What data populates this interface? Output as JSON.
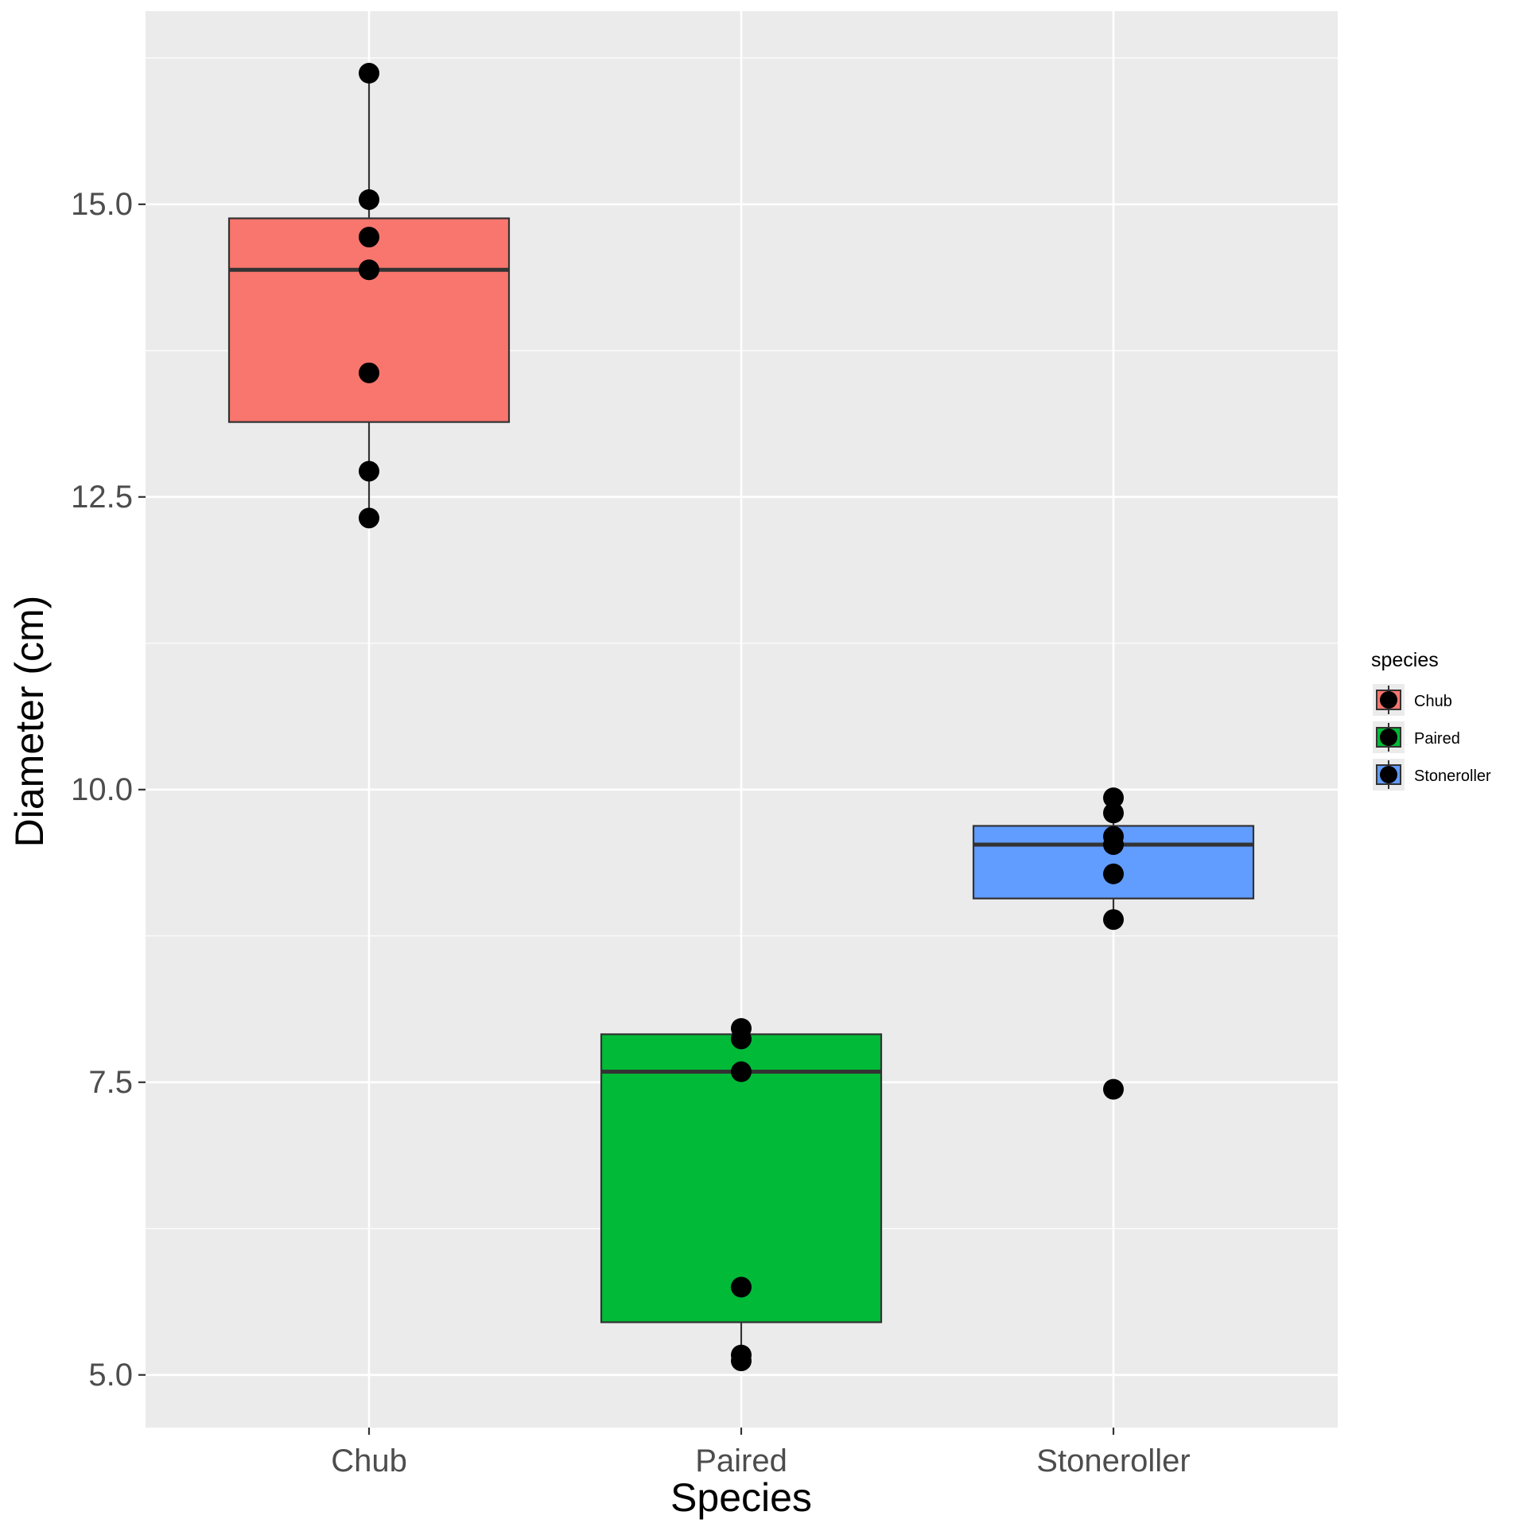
{
  "chart_data": {
    "type": "boxplot",
    "xlabel": "Species",
    "ylabel": "Diameter (cm)",
    "categories": [
      "Chub",
      "Paired",
      "Stoneroller"
    ],
    "ylim": [
      4.55,
      16.65
    ],
    "yticks": [
      5.0,
      7.5,
      10.0,
      12.5,
      15.0
    ],
    "ytick_labels": [
      "5.0",
      "7.5",
      "10.0",
      "12.5",
      "15.0"
    ],
    "grid": true,
    "legend": {
      "title": "species",
      "position": "right",
      "entries": [
        "Chub",
        "Paired",
        "Stoneroller"
      ]
    },
    "colors": {
      "Chub": "#F8766D",
      "Paired": "#00BA38",
      "Stoneroller": "#619CFF",
      "panel_background": "#EBEBEB",
      "grid": "#FFFFFF",
      "point": "#000000",
      "box_outline": "#333333"
    },
    "boxes": [
      {
        "category": "Chub",
        "whisker_low": 12.32,
        "q1": 13.14,
        "median": 14.44,
        "q3": 14.88,
        "whisker_high": 16.12
      },
      {
        "category": "Paired",
        "whisker_low": 5.12,
        "q1": 5.45,
        "median": 7.59,
        "q3": 7.91,
        "whisker_high": 7.96
      },
      {
        "category": "Stoneroller",
        "whisker_low": 8.89,
        "q1": 9.07,
        "median": 9.53,
        "q3": 9.69,
        "whisker_high": 9.93
      }
    ],
    "points": [
      {
        "category": "Chub",
        "values": [
          16.12,
          15.04,
          14.72,
          14.44,
          13.56,
          12.72,
          12.32
        ]
      },
      {
        "category": "Paired",
        "values": [
          7.96,
          7.87,
          7.59,
          5.75,
          5.17,
          5.12
        ]
      },
      {
        "category": "Stoneroller",
        "values": [
          9.93,
          9.8,
          9.6,
          9.53,
          9.28,
          8.89,
          7.44
        ]
      }
    ]
  }
}
